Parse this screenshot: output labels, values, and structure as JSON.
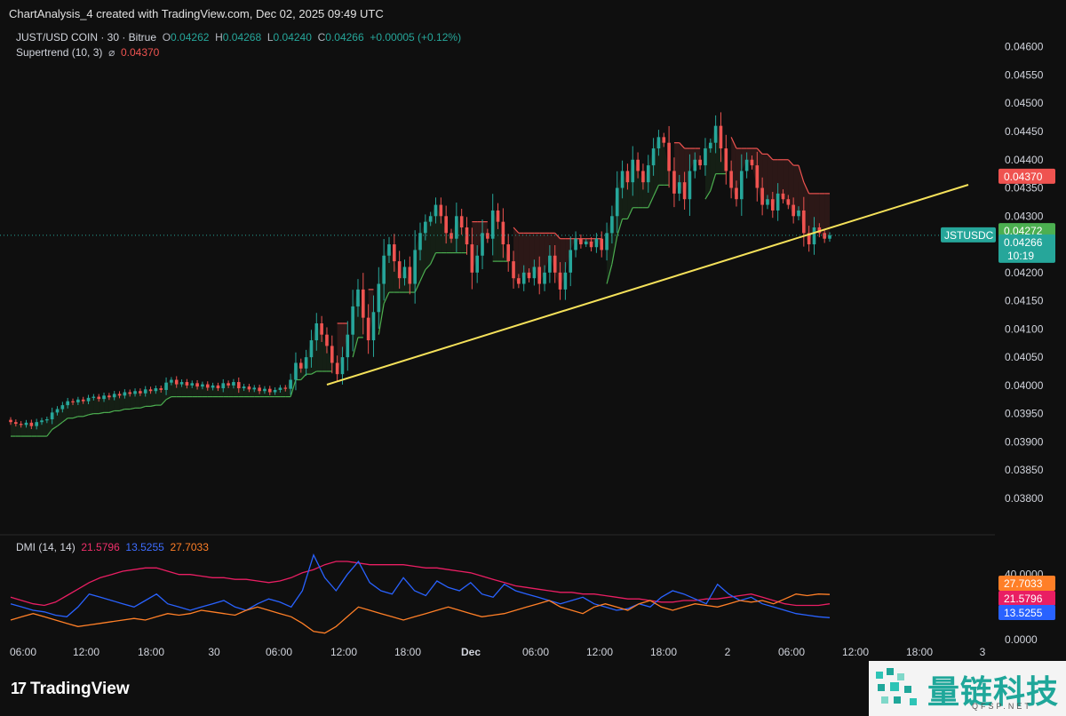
{
  "header": {
    "text": "ChartAnalysis_4 created with TradingView.com, Dec 02, 2025 09:49 UTC"
  },
  "legend": {
    "symbol": "JUST/USD COIN · 30 · Bitrue",
    "o_label": "O",
    "o_value": "0.04262",
    "h_label": "H",
    "h_value": "0.04268",
    "l_label": "L",
    "l_value": "0.04240",
    "c_label": "C",
    "c_value": "0.04266",
    "change": "+0.00005 (+0.12%)",
    "supertrend_label": "Supertrend (10, 3)",
    "supertrend_icon": "⌀",
    "supertrend_value": "0.04370"
  },
  "dmi_legend": {
    "label": "DMI (14, 14)",
    "v1": "21.5796",
    "v2": "13.5255",
    "v3": "27.7033"
  },
  "price_axis": {
    "ticks": [
      "0.04600",
      "0.04550",
      "0.04500",
      "0.04450",
      "0.04400",
      "0.04350",
      "0.04300",
      "0.04250",
      "0.04200",
      "0.04150",
      "0.04100",
      "0.04050",
      "0.04000",
      "0.03950",
      "0.03900",
      "0.03850",
      "0.03800"
    ],
    "tag_supertrend": "0.04370",
    "tag_high": "0.04272",
    "tag_last": "0.04266",
    "tag_countdown": "10:19",
    "symbol_tag": "JSTUSDC"
  },
  "dmi_axis": {
    "ticks": [
      "40.0000",
      "0.0000"
    ],
    "tag_adx": "27.7033",
    "tag_plus": "21.5796",
    "tag_minus": "13.5255"
  },
  "time_axis": {
    "labels": [
      "06:00",
      "12:00",
      "18:00",
      "30",
      "06:00",
      "12:00",
      "18:00",
      "Dec",
      "06:00",
      "12:00",
      "18:00",
      "2",
      "06:00",
      "12:00",
      "18:00",
      "3"
    ]
  },
  "brand": {
    "logo": "17",
    "name": "TradingView"
  },
  "watermark": {
    "text": "量链科技",
    "url": "QFSP.NET"
  },
  "colors": {
    "background": "#0f0f0f",
    "up": "#26a69a",
    "down": "#ef5350",
    "supertrend_up": "#4caf50",
    "supertrend_down": "#ef5350",
    "trendline": "#f5e15a",
    "dmi_plus": "#e91e63",
    "dmi_minus": "#2962ff",
    "adx": "#ff7f27"
  },
  "chart_data": [
    {
      "type": "candlestick",
      "title": "JUST/USD COIN · 30 · Bitrue",
      "xlabel": "",
      "ylabel": "",
      "ylim": [
        0.0377,
        0.0462
      ],
      "x_ticks": [
        "06:00",
        "12:00",
        "18:00",
        "30",
        "06:00",
        "12:00",
        "18:00",
        "Dec",
        "06:00",
        "12:00",
        "18:00",
        "2",
        "06:00",
        "12:00",
        "18:00",
        "3"
      ],
      "grid": false,
      "last_price": 0.04266,
      "candles_close": [
        0.03935,
        0.03932,
        0.0393,
        0.03934,
        0.03928,
        0.03935,
        0.03938,
        0.0394,
        0.03952,
        0.03958,
        0.03965,
        0.03972,
        0.0397,
        0.03975,
        0.03972,
        0.03978,
        0.0398,
        0.03976,
        0.03982,
        0.03979,
        0.03985,
        0.03982,
        0.03988,
        0.03985,
        0.0399,
        0.03986,
        0.03993,
        0.0399,
        0.03995,
        0.03992,
        0.04005,
        0.0401,
        0.04002,
        0.04006,
        0.04,
        0.04004,
        0.03998,
        0.04002,
        0.03996,
        0.04,
        0.03995,
        0.04004,
        0.04,
        0.04006,
        0.03995,
        0.03998,
        0.03993,
        0.03996,
        0.0399,
        0.03994,
        0.03988,
        0.03992,
        0.03996,
        0.03994,
        0.0401,
        0.0404,
        0.0403,
        0.0405,
        0.0408,
        0.0411,
        0.0409,
        0.0407,
        0.0404,
        0.0402,
        0.0405,
        0.0409,
        0.0414,
        0.0417,
        0.0412,
        0.0408,
        0.0413,
        0.0418,
        0.0423,
        0.0425,
        0.0422,
        0.0419,
        0.0421,
        0.0418,
        0.0424,
        0.0427,
        0.0429,
        0.043,
        0.0432,
        0.043,
        0.0427,
        0.0426,
        0.043,
        0.0428,
        0.0425,
        0.042,
        0.0423,
        0.0427,
        0.0426,
        0.0431,
        0.0429,
        0.0425,
        0.0422,
        0.0419,
        0.0418,
        0.042,
        0.0419,
        0.0421,
        0.0418,
        0.042,
        0.0423,
        0.042,
        0.0417,
        0.042,
        0.0424,
        0.0426,
        0.0425,
        0.04255,
        0.04245,
        0.0426,
        0.0424,
        0.0427,
        0.043,
        0.0435,
        0.0438,
        0.0436,
        0.044,
        0.0438,
        0.0436,
        0.0439,
        0.0442,
        0.0444,
        0.0443,
        0.0438,
        0.0434,
        0.0436,
        0.0433,
        0.0438,
        0.044,
        0.0439,
        0.0442,
        0.0443,
        0.0446,
        0.0442,
        0.0438,
        0.0435,
        0.0433,
        0.0438,
        0.044,
        0.0439,
        0.0435,
        0.0432,
        0.0433,
        0.0431,
        0.0434,
        0.0433,
        0.0432,
        0.043,
        0.0431,
        0.0427,
        0.0425,
        0.0428,
        0.0427,
        0.0426,
        0.04266
      ]
    },
    {
      "type": "line",
      "title": "DMI (14, 14)",
      "ylim": [
        0,
        60
      ],
      "series": [
        {
          "name": "21.5796",
          "values": [
            26,
            24,
            22,
            21,
            23,
            27,
            31,
            35,
            38,
            40,
            42,
            43,
            44,
            44,
            42,
            40,
            40,
            39,
            38,
            38,
            37,
            37,
            36,
            35,
            36,
            38,
            41,
            43,
            46,
            48,
            48,
            47,
            46,
            46,
            46,
            46,
            45,
            44,
            44,
            43,
            42,
            41,
            39,
            37,
            35,
            33,
            32,
            31,
            30,
            29,
            29,
            28,
            28,
            27,
            26,
            25,
            25,
            24,
            23,
            23,
            24,
            24,
            25,
            25,
            26,
            27,
            28,
            26,
            24,
            22,
            21,
            21,
            21,
            22
          ]
        },
        {
          "name": "13.5255",
          "values": [
            22,
            20,
            18,
            17,
            15,
            14,
            20,
            28,
            26,
            24,
            22,
            20,
            24,
            28,
            22,
            20,
            18,
            20,
            22,
            24,
            20,
            18,
            22,
            25,
            23,
            20,
            30,
            52,
            38,
            30,
            40,
            48,
            35,
            30,
            28,
            38,
            30,
            27,
            36,
            32,
            30,
            35,
            28,
            26,
            34,
            30,
            28,
            26,
            24,
            22,
            24,
            26,
            22,
            20,
            18,
            19,
            22,
            20,
            26,
            30,
            28,
            25,
            22,
            34,
            28,
            24,
            26,
            22,
            20,
            18,
            16,
            15,
            14,
            13.5
          ]
        },
        {
          "name": "27.7033",
          "values": [
            12,
            14,
            16,
            14,
            12,
            10,
            8,
            9,
            10,
            11,
            12,
            13,
            12,
            14,
            16,
            15,
            16,
            18,
            17,
            16,
            15,
            18,
            20,
            18,
            16,
            14,
            10,
            5,
            4,
            8,
            14,
            20,
            18,
            16,
            14,
            12,
            14,
            16,
            18,
            20,
            18,
            16,
            14,
            15,
            16,
            18,
            20,
            22,
            24,
            20,
            18,
            16,
            20,
            22,
            20,
            18,
            22,
            24,
            20,
            18,
            20,
            22,
            21,
            20,
            22,
            24,
            23,
            24,
            22,
            25,
            28,
            27,
            28,
            27.7
          ]
        }
      ]
    }
  ]
}
